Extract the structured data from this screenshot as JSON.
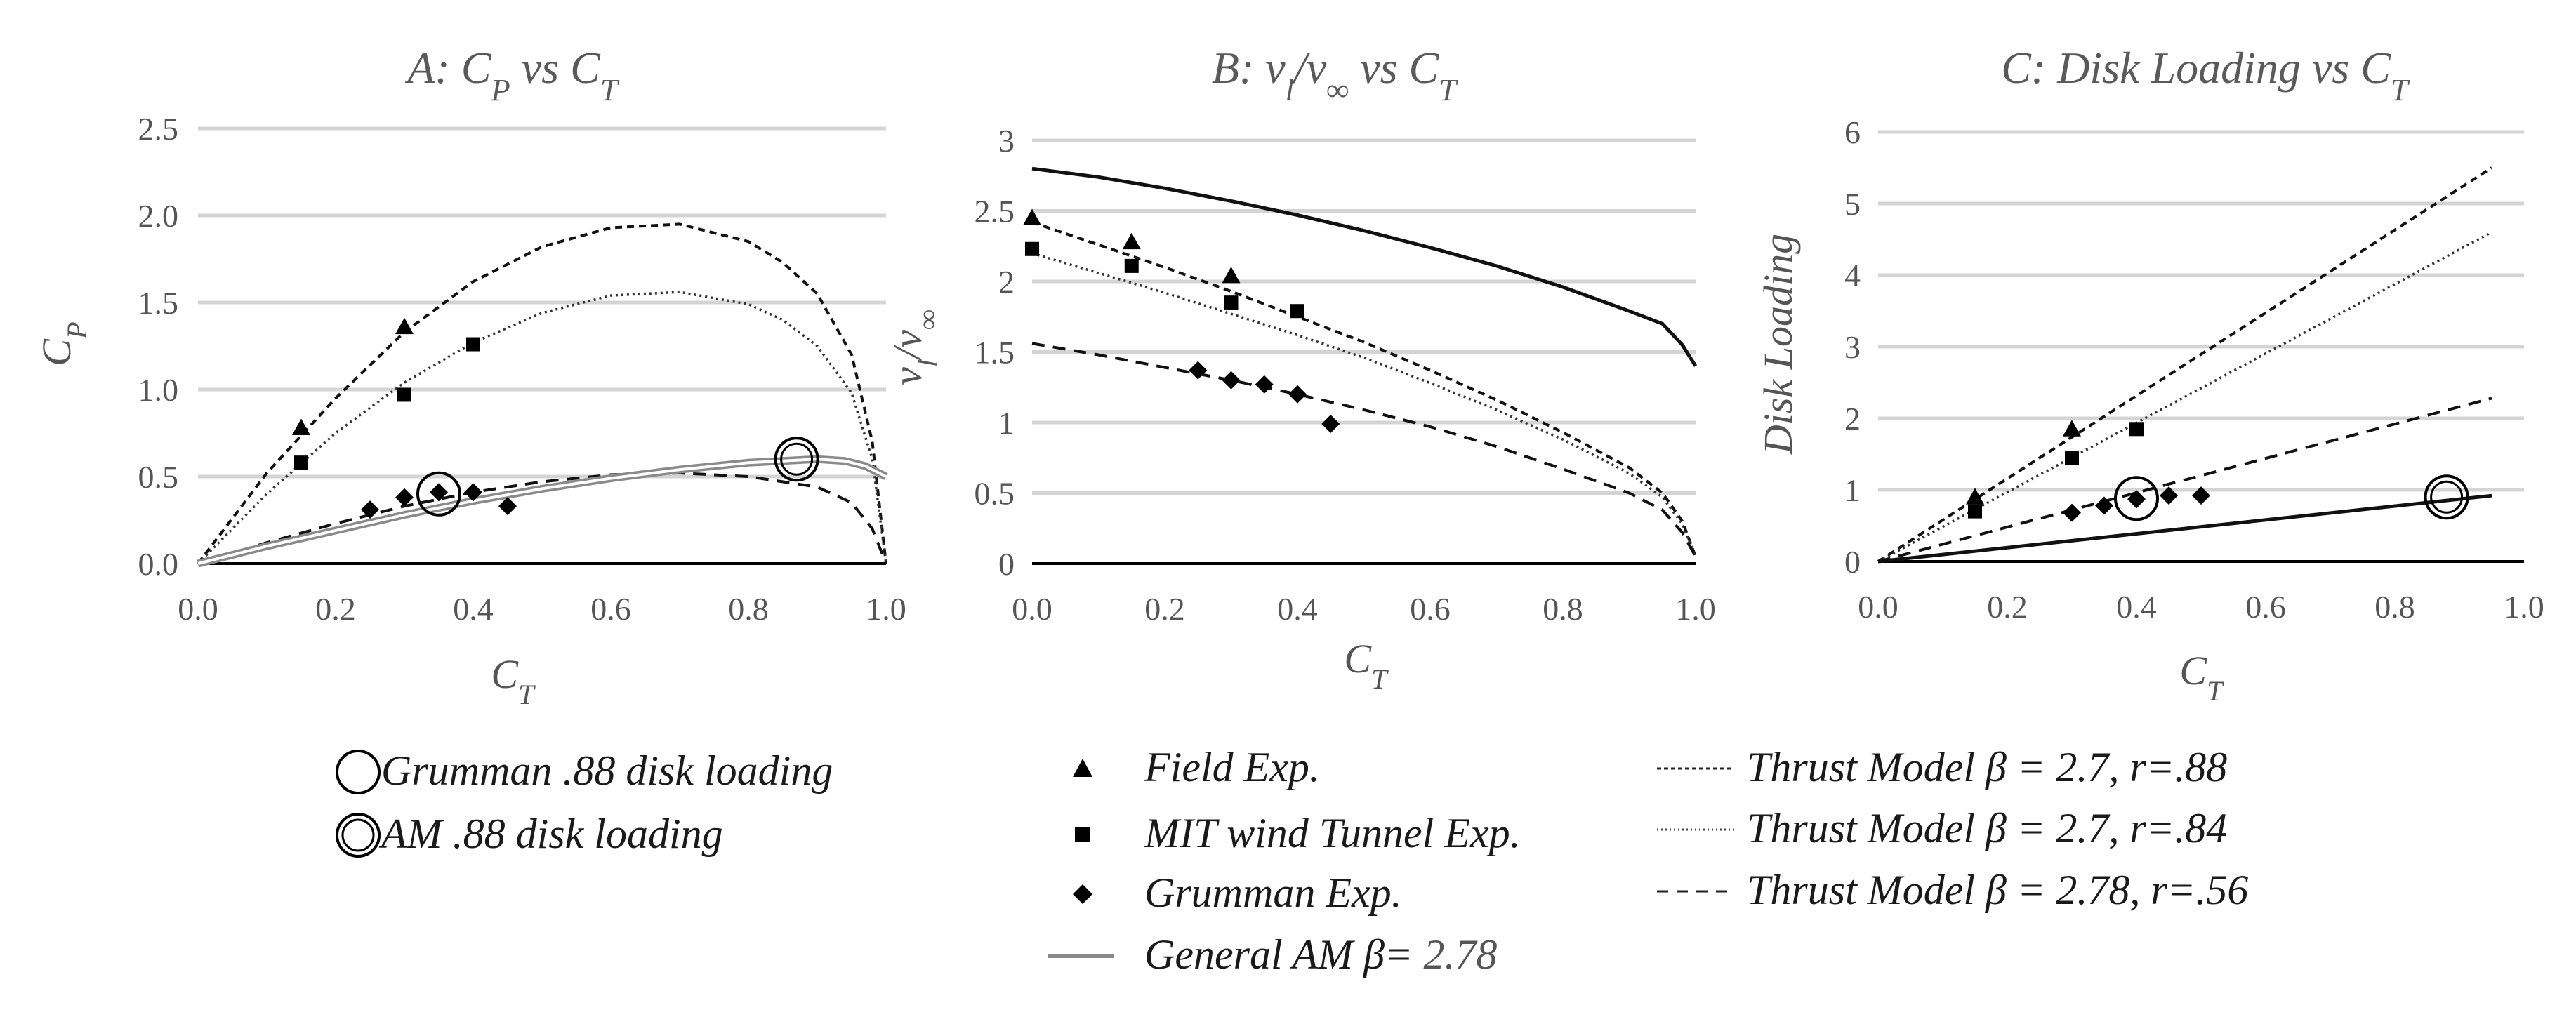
{
  "chart_data": [
    {
      "type": "line",
      "title": "A: C_P vs C_T",
      "title_parts": [
        "A: C",
        "P",
        " vs C",
        "T"
      ],
      "xlabel_parts": [
        "C",
        "T"
      ],
      "ylabel_parts": [
        "C",
        "P"
      ],
      "xlim": [
        0,
        1
      ],
      "ylim": [
        0,
        2.5
      ],
      "xticks": [
        0,
        0.2,
        0.4,
        0.6,
        0.8,
        1.0
      ],
      "xtick_labels": [
        "0.0",
        "0.2",
        "0.4",
        "0.6",
        "0.8",
        "1.0"
      ],
      "yticks": [
        0,
        0.5,
        1.0,
        1.5,
        2.0,
        2.5
      ],
      "ytick_labels": [
        "0.0",
        "0.5",
        "1.0",
        "1.5",
        "2.0",
        "2.5"
      ],
      "grid": true,
      "series": [
        {
          "name": "Field Exp.",
          "style": "marker-triangle",
          "x": [
            0.15,
            0.3
          ],
          "y": [
            0.78,
            1.36
          ]
        },
        {
          "name": "MIT wind Tunnel Exp.",
          "style": "marker-square",
          "x": [
            0.15,
            0.3,
            0.4
          ],
          "y": [
            0.58,
            0.97,
            1.26
          ]
        },
        {
          "name": "Grumman Exp.",
          "style": "marker-diamond",
          "x": [
            0.25,
            0.3,
            0.35,
            0.4,
            0.45
          ],
          "y": [
            0.31,
            0.38,
            0.41,
            0.41,
            0.33
          ]
        },
        {
          "name": "Thrust Model β = 2.7, r=.88",
          "style": "dash-fine",
          "x": [
            0,
            0.1,
            0.2,
            0.3,
            0.4,
            0.5,
            0.6,
            0.7,
            0.8,
            0.85,
            0.9,
            0.95,
            0.98,
            1.0
          ],
          "y": [
            0,
            0.52,
            0.95,
            1.33,
            1.62,
            1.82,
            1.93,
            1.95,
            1.85,
            1.73,
            1.55,
            1.2,
            0.7,
            0
          ]
        },
        {
          "name": "Thrust Model β = 2.7, r=.84",
          "style": "dotted",
          "x": [
            0,
            0.1,
            0.2,
            0.3,
            0.4,
            0.5,
            0.6,
            0.7,
            0.8,
            0.85,
            0.9,
            0.95,
            0.98,
            1.0
          ],
          "y": [
            0,
            0.4,
            0.75,
            1.04,
            1.27,
            1.44,
            1.54,
            1.56,
            1.49,
            1.4,
            1.25,
            0.98,
            0.6,
            0
          ]
        },
        {
          "name": "Thrust Model β = 2.78, r=.56",
          "style": "dash-wide",
          "x": [
            0,
            0.1,
            0.2,
            0.3,
            0.4,
            0.5,
            0.6,
            0.7,
            0.8,
            0.9,
            0.95,
            0.98,
            1.0
          ],
          "y": [
            0,
            0.12,
            0.23,
            0.33,
            0.41,
            0.47,
            0.51,
            0.52,
            0.5,
            0.44,
            0.35,
            0.2,
            0
          ]
        },
        {
          "name": "General AM β= 2.78",
          "style": "double-gray",
          "x": [
            0,
            0.1,
            0.2,
            0.3,
            0.4,
            0.5,
            0.6,
            0.7,
            0.8,
            0.9,
            0.94,
            0.97,
            1.0
          ],
          "y": [
            0,
            0.1,
            0.19,
            0.28,
            0.36,
            0.43,
            0.49,
            0.54,
            0.58,
            0.6,
            0.59,
            0.56,
            0.5
          ]
        }
      ],
      "annotations": [
        {
          "name": "Grumman .88 disk loading",
          "shape": "circle",
          "x": 0.35,
          "y": 0.4
        },
        {
          "name": "AM .88 disk loading",
          "shape": "double-circle",
          "x": 0.87,
          "y": 0.6
        }
      ]
    },
    {
      "type": "line",
      "title": "B: v_l/v_∞ vs C_T",
      "title_parts": [
        "B: v",
        "l",
        "/v",
        "∞",
        " vs C",
        "T"
      ],
      "xlabel_parts": [
        "C",
        "T"
      ],
      "ylabel_parts": [
        "v",
        "l",
        "/v",
        "∞"
      ],
      "xlim": [
        0,
        1
      ],
      "ylim": [
        0,
        3
      ],
      "xticks": [
        0,
        0.2,
        0.4,
        0.6,
        0.8,
        1.0
      ],
      "xtick_labels": [
        "0.0",
        "0.2",
        "0.4",
        "0.6",
        "0.8",
        "1.0"
      ],
      "yticks": [
        0,
        0.5,
        1,
        1.5,
        2,
        2.5,
        3
      ],
      "ytick_labels": [
        "0",
        "0.5",
        "1",
        "1.5",
        "2",
        "2.5",
        "3"
      ],
      "grid": true,
      "series": [
        {
          "name": "Field Exp.",
          "style": "marker-triangle",
          "x": [
            0,
            0.15,
            0.3
          ],
          "y": [
            2.45,
            2.28,
            2.04
          ]
        },
        {
          "name": "MIT wind Tunnel Exp.",
          "style": "marker-square",
          "x": [
            0,
            0.15,
            0.3,
            0.4
          ],
          "y": [
            2.23,
            2.11,
            1.85,
            1.79
          ]
        },
        {
          "name": "Grumman Exp.",
          "style": "marker-diamond",
          "x": [
            0.25,
            0.3,
            0.35,
            0.4,
            0.45
          ],
          "y": [
            1.37,
            1.3,
            1.27,
            1.2,
            0.99
          ]
        },
        {
          "name": "General AM β= 2.78",
          "style": "solid-black",
          "x": [
            0,
            0.1,
            0.2,
            0.3,
            0.4,
            0.5,
            0.6,
            0.7,
            0.8,
            0.9,
            0.95,
            0.98,
            1.0
          ],
          "y": [
            2.8,
            2.74,
            2.66,
            2.57,
            2.47,
            2.36,
            2.24,
            2.11,
            1.96,
            1.79,
            1.7,
            1.55,
            1.4
          ]
        },
        {
          "name": "Thrust Model β = 2.7, r=.88",
          "style": "dash-fine",
          "x": [
            0,
            0.1,
            0.2,
            0.3,
            0.4,
            0.5,
            0.6,
            0.7,
            0.8,
            0.9,
            0.95,
            0.98,
            1.0
          ],
          "y": [
            2.42,
            2.26,
            2.1,
            1.93,
            1.75,
            1.57,
            1.37,
            1.16,
            0.93,
            0.68,
            0.5,
            0.3,
            0.05
          ]
        },
        {
          "name": "Thrust Model β = 2.7, r=.84",
          "style": "dotted",
          "x": [
            0,
            0.1,
            0.2,
            0.3,
            0.4,
            0.5,
            0.6,
            0.7,
            0.8,
            0.9,
            0.95,
            0.98,
            1.0
          ],
          "y": [
            2.2,
            2.06,
            1.92,
            1.77,
            1.62,
            1.46,
            1.28,
            1.09,
            0.88,
            0.64,
            0.47,
            0.28,
            0.05
          ]
        },
        {
          "name": "Thrust Model β = 2.78, r=.56",
          "style": "dash-wide",
          "x": [
            0,
            0.1,
            0.2,
            0.3,
            0.4,
            0.5,
            0.6,
            0.7,
            0.8,
            0.9,
            0.95,
            0.98,
            1.0
          ],
          "y": [
            1.56,
            1.48,
            1.39,
            1.3,
            1.2,
            1.09,
            0.97,
            0.83,
            0.67,
            0.5,
            0.38,
            0.22,
            0.05
          ]
        }
      ],
      "annotations": []
    },
    {
      "type": "line",
      "title": "C: Disk Loading vs C_T",
      "title_parts": [
        "C: Disk Loading vs C",
        "T"
      ],
      "xlabel_parts": [
        "C",
        "T"
      ],
      "ylabel_parts": [
        "Disk Loading"
      ],
      "xlim": [
        0,
        1
      ],
      "ylim": [
        0,
        6
      ],
      "xticks": [
        0,
        0.2,
        0.4,
        0.6,
        0.8,
        1.0
      ],
      "xtick_labels": [
        "0.0",
        "0.2",
        "0.4",
        "0.6",
        "0.8",
        "1.0"
      ],
      "yticks": [
        0,
        1,
        2,
        3,
        4,
        5,
        6
      ],
      "ytick_labels": [
        "0",
        "1",
        "2",
        "3",
        "4",
        "5",
        "6"
      ],
      "grid": true,
      "series": [
        {
          "name": "Field Exp.",
          "style": "marker-triangle",
          "x": [
            0.15,
            0.3
          ],
          "y": [
            0.9,
            1.85
          ]
        },
        {
          "name": "MIT wind Tunnel Exp.",
          "style": "marker-square",
          "x": [
            0.15,
            0.3,
            0.4
          ],
          "y": [
            0.7,
            1.45,
            1.85
          ]
        },
        {
          "name": "Grumman Exp.",
          "style": "marker-diamond",
          "x": [
            0.3,
            0.35,
            0.4,
            0.45,
            0.5
          ],
          "y": [
            0.68,
            0.78,
            0.87,
            0.92,
            0.92
          ]
        },
        {
          "name": "Thrust Model β = 2.7, r=.88",
          "style": "dash-fine",
          "x": [
            0,
            0.95
          ],
          "y": [
            0,
            5.5
          ]
        },
        {
          "name": "Thrust Model β = 2.7, r=.84",
          "style": "dotted",
          "x": [
            0,
            0.95
          ],
          "y": [
            0,
            4.6
          ]
        },
        {
          "name": "Thrust Model β = 2.78, r=.56",
          "style": "dash-wide",
          "x": [
            0,
            0.95
          ],
          "y": [
            0,
            2.28
          ]
        },
        {
          "name": "General AM β= 2.78",
          "style": "solid-black",
          "x": [
            0,
            0.95
          ],
          "y": [
            0,
            0.92
          ]
        }
      ],
      "annotations": [
        {
          "name": "Grumman .88 disk loading",
          "shape": "circle",
          "x": 0.4,
          "y": 0.88
        },
        {
          "name": "AM .88 disk loading",
          "shape": "double-circle",
          "x": 0.88,
          "y": 0.9
        }
      ]
    }
  ],
  "legend": {
    "placement": "bottom",
    "items": [
      {
        "key": "grumman_circle",
        "symbol": "circle",
        "label": "Grumman .88 disk loading"
      },
      {
        "key": "am_circle",
        "symbol": "double-circle",
        "label": "AM .88 disk loading"
      },
      {
        "key": "field",
        "symbol": "triangle",
        "label": "Field Exp."
      },
      {
        "key": "mit",
        "symbol": "square",
        "label": "MIT wind Tunnel Exp."
      },
      {
        "key": "grumman",
        "symbol": "diamond",
        "label": "Grumman Exp."
      },
      {
        "key": "general_am",
        "symbol": "line-gray",
        "label_main": "General AM  β=",
        "label_value": " 2.78"
      },
      {
        "key": "tm88",
        "symbol": "dash-fine",
        "label": "Thrust Model β = 2.7, r=.88"
      },
      {
        "key": "tm84",
        "symbol": "dotted",
        "label": "Thrust Model β = 2.7, r=.84"
      },
      {
        "key": "tm56",
        "symbol": "dash-wide",
        "label": "Thrust Model β = 2.78, r=.56"
      }
    ]
  }
}
